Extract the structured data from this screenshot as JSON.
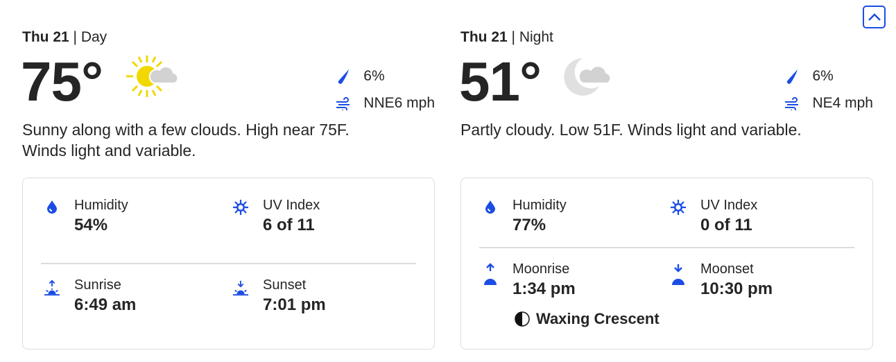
{
  "colors": {
    "accent": "#1b4de4",
    "sun": "#f0d800",
    "cloud": "#d2d2d2",
    "moon": "#e0e0e0"
  },
  "collapse_button": {
    "icon": "chevron-up-icon"
  },
  "day": {
    "date": "Thu 21",
    "period": "Day",
    "temperature": "75°",
    "icon": "sun-cloud-icon",
    "precip": "6%",
    "wind": "NNE6 mph",
    "description": "Sunny along with a few clouds. High near 75F. Winds light and variable.",
    "humidity": {
      "label": "Humidity",
      "value": "54%"
    },
    "uv": {
      "label": "UV Index",
      "value": "6 of 11"
    },
    "rise": {
      "label": "Sunrise",
      "value": "6:49 am"
    },
    "set": {
      "label": "Sunset",
      "value": "7:01 pm"
    }
  },
  "night": {
    "date": "Thu 21",
    "period": "Night",
    "temperature": "51°",
    "icon": "moon-cloud-icon",
    "precip": "6%",
    "wind": "NE4 mph",
    "description": "Partly cloudy. Low 51F. Winds light and variable.",
    "humidity": {
      "label": "Humidity",
      "value": "77%"
    },
    "uv": {
      "label": "UV Index",
      "value": "0 of 11"
    },
    "rise": {
      "label": "Moonrise",
      "value": "1:34 pm"
    },
    "set": {
      "label": "Moonset",
      "value": "10:30 pm"
    },
    "moon_phase": "Waxing Crescent"
  }
}
